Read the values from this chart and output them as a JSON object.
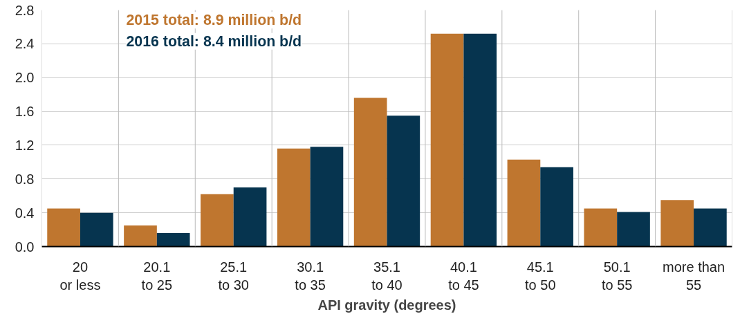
{
  "chart_data": {
    "type": "bar",
    "xlabel": "API gravity (degrees)",
    "categories": [
      "20\nor less",
      "20.1\nto 25",
      "25.1\nto 30",
      "30.1\nto 35",
      "35.1\nto 40",
      "40.1\nto 45",
      "45.1\nto 50",
      "50.1\nto 55",
      "more than\n55"
    ],
    "series": [
      {
        "color": "#bf762f",
        "values": [
          0.45,
          0.25,
          0.62,
          1.16,
          1.76,
          2.52,
          1.03,
          0.45,
          0.55
        ]
      },
      {
        "color": "#06344f",
        "values": [
          0.4,
          0.16,
          0.7,
          1.18,
          1.55,
          2.52,
          0.94,
          0.41,
          0.45
        ]
      }
    ],
    "ylim": [
      0,
      2.8
    ],
    "yticks": [
      {
        "value": 0,
        "label": "0.0"
      },
      {
        "value": 0.4,
        "label": "0.4"
      },
      {
        "value": 0.8,
        "label": "0.8"
      },
      {
        "value": 1.2,
        "label": "1.2"
      },
      {
        "value": 1.6,
        "label": "1.6"
      },
      {
        "value": 2.0,
        "label": "2.0"
      },
      {
        "value": 2.4,
        "label": "2.4"
      },
      {
        "value": 2.8,
        "label": "2.8"
      }
    ],
    "grid": true,
    "annotations": [
      "2015 total: 8.9 million b/d",
      "2016 total: 8.4 million b/d"
    ]
  }
}
